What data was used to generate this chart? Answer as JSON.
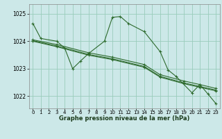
{
  "title": "Graphe pression niveau de la mer (hPa)",
  "background_color": "#cce8e8",
  "grid_color": "#99ccbb",
  "line_color": "#2d6a2d",
  "xlim": [
    -0.5,
    23.5
  ],
  "ylim": [
    1021.55,
    1025.35
  ],
  "yticks": [
    1022,
    1023,
    1024,
    1025
  ],
  "xticks": [
    0,
    1,
    2,
    3,
    4,
    5,
    6,
    7,
    8,
    9,
    10,
    11,
    12,
    13,
    14,
    15,
    16,
    17,
    18,
    19,
    20,
    21,
    22,
    23
  ],
  "series": [
    {
      "x": [
        0,
        1,
        3,
        4,
        5,
        6,
        7,
        9,
        10,
        11,
        12,
        14,
        16,
        17,
        18,
        20,
        21,
        22,
        23
      ],
      "y": [
        1024.65,
        1024.1,
        1024.0,
        1023.75,
        1023.0,
        1023.28,
        1023.55,
        1024.0,
        1024.87,
        1024.9,
        1024.65,
        1024.35,
        1023.62,
        1022.95,
        1022.72,
        1022.12,
        1022.42,
        1022.08,
        1021.73
      ]
    },
    {
      "x": [
        0,
        3,
        7,
        10,
        14,
        16,
        19,
        21,
        23
      ],
      "y": [
        1024.05,
        1023.88,
        1023.58,
        1023.42,
        1023.15,
        1022.78,
        1022.55,
        1022.42,
        1022.28
      ]
    },
    {
      "x": [
        0,
        3,
        7,
        10,
        14,
        16,
        19,
        21,
        23
      ],
      "y": [
        1024.02,
        1023.83,
        1023.52,
        1023.36,
        1023.08,
        1022.72,
        1022.48,
        1022.35,
        1022.22
      ]
    },
    {
      "x": [
        0,
        3,
        7,
        10,
        14,
        16,
        19,
        21,
        23
      ],
      "y": [
        1024.0,
        1023.8,
        1023.49,
        1023.33,
        1023.05,
        1022.69,
        1022.45,
        1022.32,
        1022.19
      ]
    }
  ]
}
